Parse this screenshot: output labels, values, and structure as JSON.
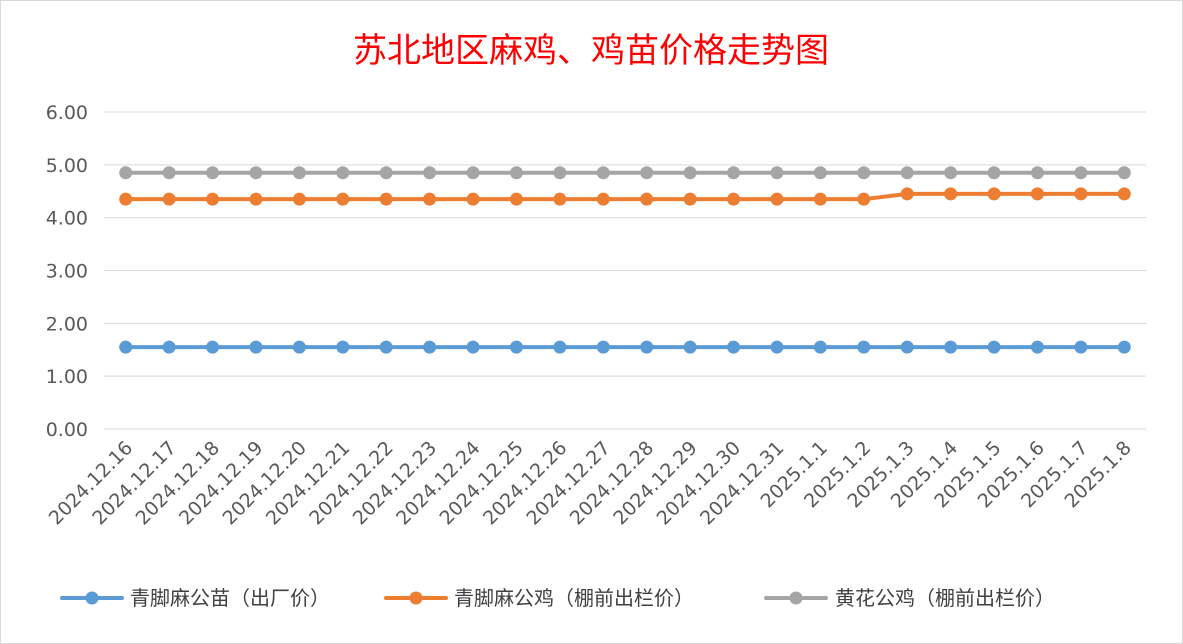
{
  "chart_data": {
    "type": "line",
    "title": "苏北地区麻鸡、鸡苗价格走势图",
    "x": [
      "2024.12.16",
      "2024.12.17",
      "2024.12.18",
      "2024.12.19",
      "2024.12.20",
      "2024.12.21",
      "2024.12.22",
      "2024.12.23",
      "2024.12.24",
      "2024.12.25",
      "2024.12.26",
      "2024.12.27",
      "2024.12.28",
      "2024.12.29",
      "2024.12.30",
      "2024.12.31",
      "2025.1.1",
      "2025.1.2",
      "2025.1.3",
      "2025.1.4",
      "2025.1.5",
      "2025.1.6",
      "2025.1.7",
      "2025.1.8"
    ],
    "yticks": [
      "0.00",
      "1.00",
      "2.00",
      "3.00",
      "4.00",
      "5.00",
      "6.00"
    ],
    "ylim": [
      0,
      6
    ],
    "grid": true,
    "legend_position": "bottom",
    "series": [
      {
        "name": "青脚麻公苗（出厂价）",
        "color": "#5b9bd5",
        "values": [
          1.55,
          1.55,
          1.55,
          1.55,
          1.55,
          1.55,
          1.55,
          1.55,
          1.55,
          1.55,
          1.55,
          1.55,
          1.55,
          1.55,
          1.55,
          1.55,
          1.55,
          1.55,
          1.55,
          1.55,
          1.55,
          1.55,
          1.55,
          1.55
        ]
      },
      {
        "name": "青脚麻公鸡（棚前出栏价）",
        "color": "#ed7d31",
        "values": [
          4.35,
          4.35,
          4.35,
          4.35,
          4.35,
          4.35,
          4.35,
          4.35,
          4.35,
          4.35,
          4.35,
          4.35,
          4.35,
          4.35,
          4.35,
          4.35,
          4.35,
          4.35,
          4.45,
          4.45,
          4.45,
          4.45,
          4.45,
          4.45
        ]
      },
      {
        "name": "黄花公鸡（棚前出栏价）",
        "color": "#a5a5a5",
        "values": [
          4.85,
          4.85,
          4.85,
          4.85,
          4.85,
          4.85,
          4.85,
          4.85,
          4.85,
          4.85,
          4.85,
          4.85,
          4.85,
          4.85,
          4.85,
          4.85,
          4.85,
          4.85,
          4.85,
          4.85,
          4.85,
          4.85,
          4.85,
          4.85
        ]
      }
    ]
  }
}
